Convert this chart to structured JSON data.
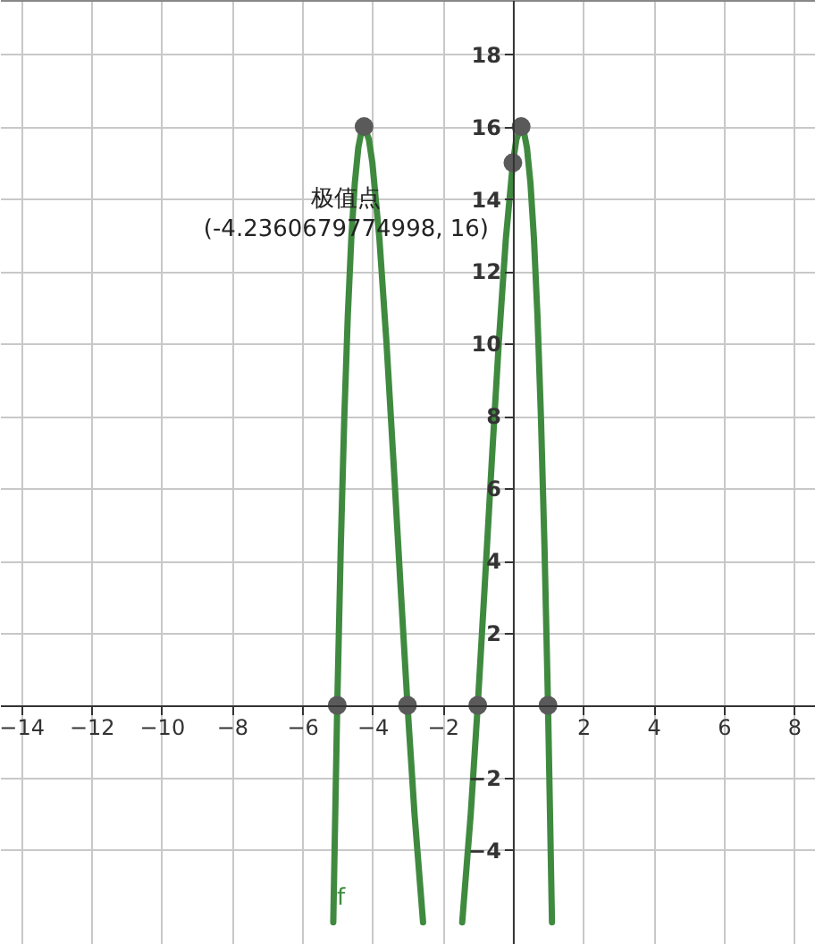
{
  "chart_data": {
    "type": "line",
    "xlim": [
      -14.6,
      8.6
    ],
    "ylim": [
      -6.6,
      19.5
    ],
    "xticks": [
      -14,
      -12,
      -10,
      -8,
      -6,
      -4,
      -2,
      2,
      4,
      6,
      8
    ],
    "yticks": [
      -4,
      -2,
      2,
      4,
      6,
      8,
      10,
      12,
      14,
      16,
      18
    ],
    "grid": true,
    "line_style": "solid",
    "series": [
      {
        "type": "line",
        "color": "#3f8a3f",
        "marker": "none",
        "x": [
          -5.113,
          -5,
          -4.9,
          -4.8,
          -4.7,
          -4.6,
          -4.5,
          -4.4,
          -4.3,
          -4.236,
          -4.1,
          -4,
          -3.8,
          -3.6,
          -3.4,
          -3.2,
          -3,
          -2.8,
          -2.557,
          -2,
          -1.443,
          -1.2,
          -1,
          -0.8,
          -0.6,
          -0.4,
          -0.2,
          0,
          0.1,
          0.236,
          0.3,
          0.4,
          0.5,
          0.6,
          0.7,
          0.8,
          0.9,
          1,
          1.113
        ],
        "values": [
          -6,
          0,
          4.37,
          7.93,
          10.76,
          12.9,
          14.44,
          15.42,
          15.92,
          16,
          15.65,
          15,
          12.9,
          10.05,
          6.76,
          3.33,
          0,
          -3.01,
          -6,
          null,
          -6,
          -3.01,
          0,
          3.33,
          6.76,
          10.05,
          12.9,
          15,
          15.65,
          16,
          15.92,
          15.42,
          14.44,
          12.9,
          10.76,
          7.93,
          4.37,
          0,
          -6
        ]
      },
      {
        "type": "scatter",
        "color": "#5a5a5a",
        "marker": "circle",
        "x": [
          -5,
          -4.2360679774998,
          -3,
          -1,
          0,
          0.236,
          1
        ],
        "values": [
          0,
          16,
          0,
          0,
          15,
          16,
          0
        ]
      }
    ],
    "annotations": [
      {
        "text": "极值点\n(-4.2360679774998, 16)",
        "x": -4.2360679774998,
        "y": 16
      },
      {
        "text": "f",
        "x": -5.113,
        "y": -6
      }
    ]
  }
}
